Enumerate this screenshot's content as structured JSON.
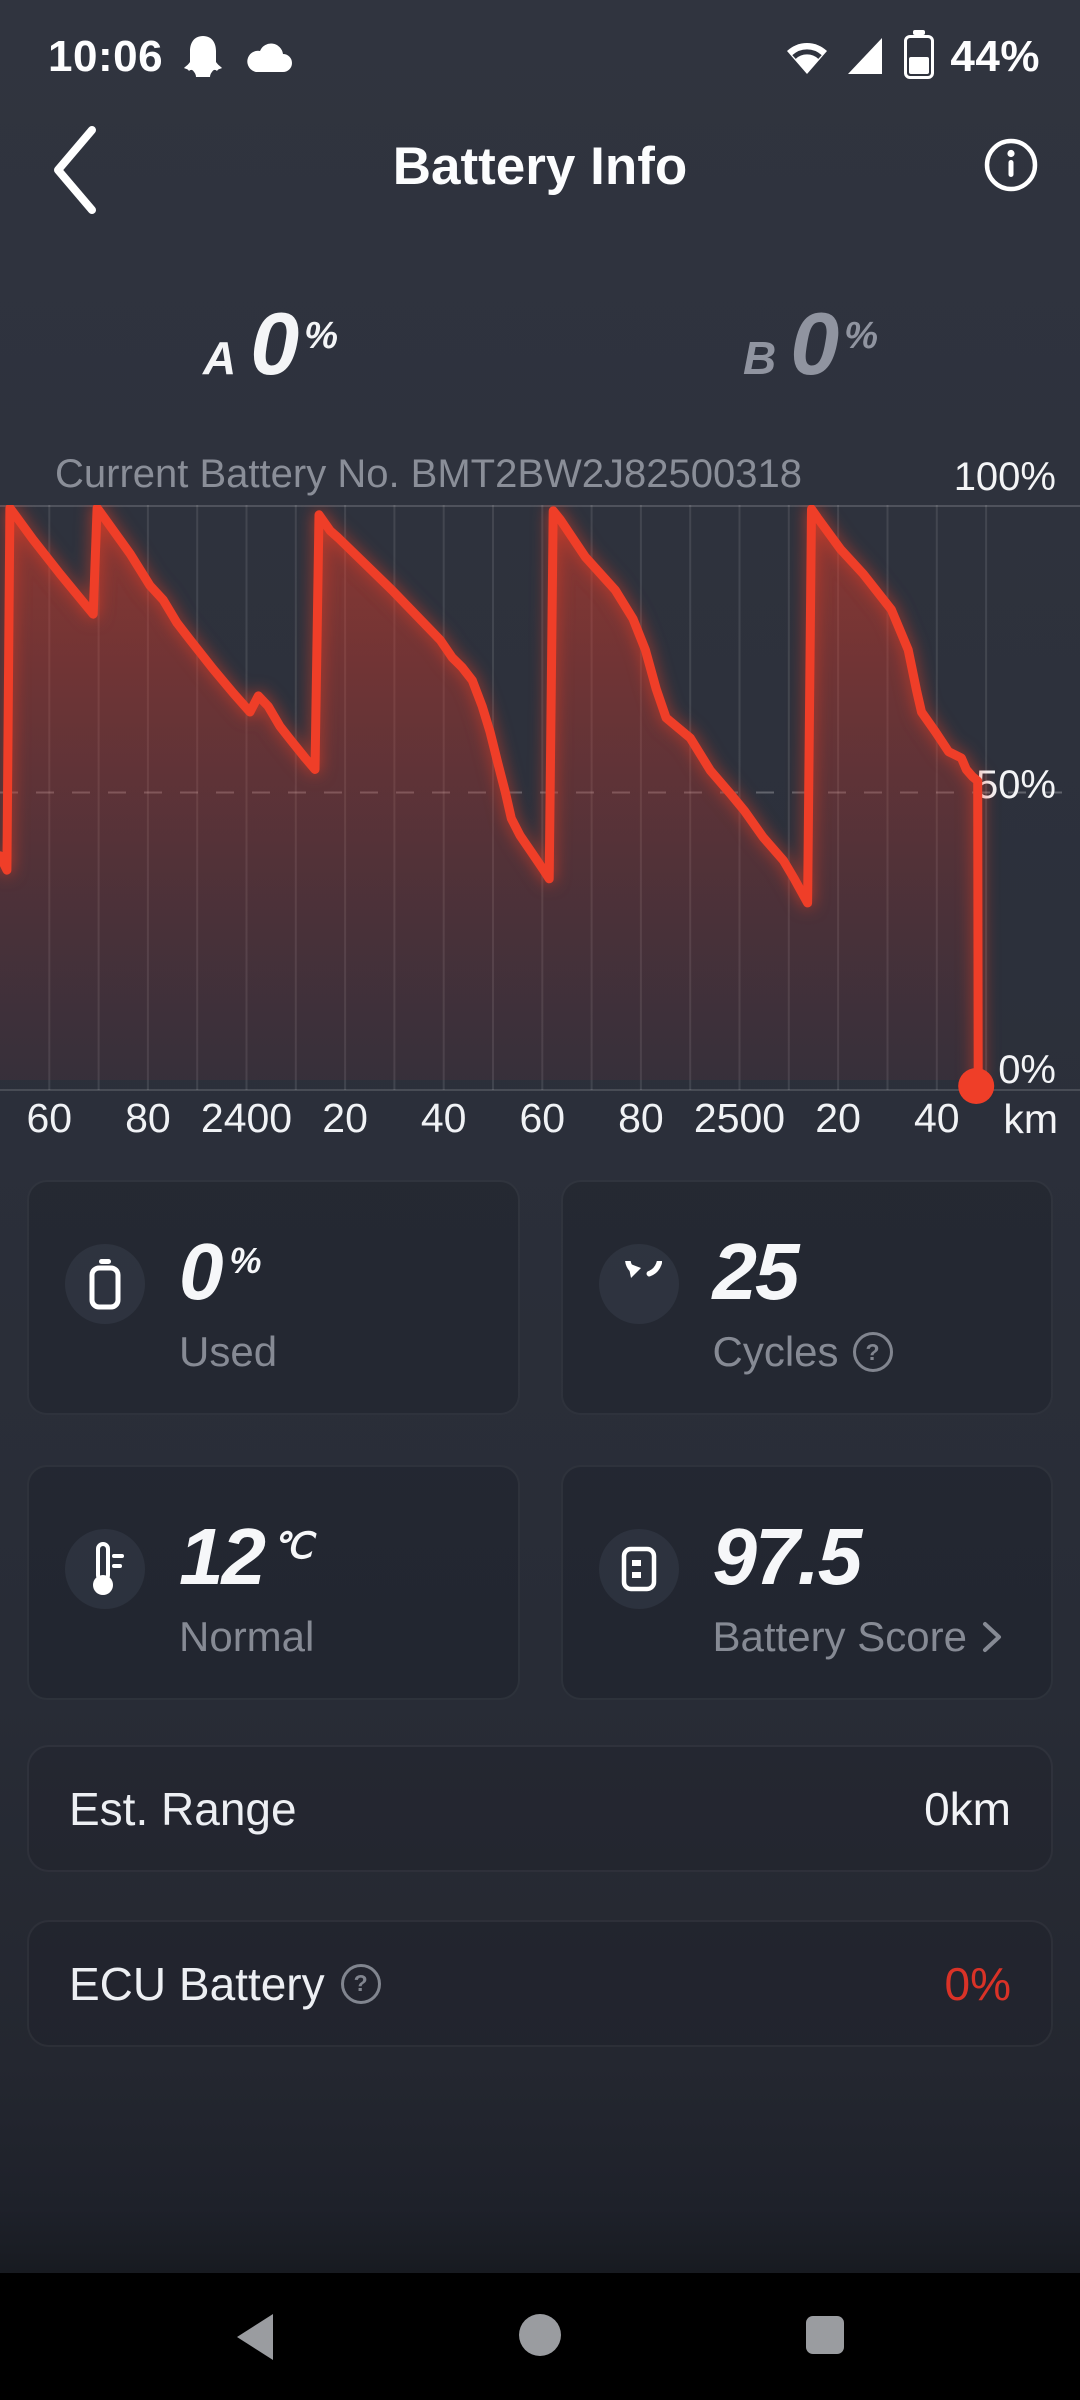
{
  "status_bar": {
    "time": "10:06",
    "battery": "44%"
  },
  "header": {
    "title": "Battery Info"
  },
  "pack_a": {
    "label": "A",
    "value": "0",
    "unit": "%"
  },
  "pack_b": {
    "label": "B",
    "value": "0",
    "unit": "%"
  },
  "chart": {
    "caption": "Current Battery No. BMT2BW2J82500318",
    "y_label_100": "100%",
    "y_label_50": "50%",
    "y_label_0": "0%",
    "x_unit": "km"
  },
  "chart_data": {
    "type": "area",
    "title": "Battery charge (%) vs odometer distance (km)",
    "xlabel": "km",
    "ylabel": "%",
    "x_range": [
      2350,
      2550.8
    ],
    "y_range": [
      0,
      100
    ],
    "grid_start_km": 2360,
    "grid_end_km": 2550,
    "grid_step_km": 10,
    "y_ticks": [
      {
        "pct": 100,
        "label": "100%"
      },
      {
        "pct": 50,
        "label": "50%"
      },
      {
        "pct": 0,
        "label": "0%"
      }
    ],
    "x_ticks": [
      {
        "km": 2360,
        "label": "60"
      },
      {
        "km": 2380,
        "label": "80"
      },
      {
        "km": 2400,
        "label": "2400"
      },
      {
        "km": 2420,
        "label": "20"
      },
      {
        "km": 2440,
        "label": "40"
      },
      {
        "km": 2460,
        "label": "60"
      },
      {
        "km": 2480,
        "label": "80"
      },
      {
        "km": 2500,
        "label": "2500"
      },
      {
        "km": 2520,
        "label": "20"
      },
      {
        "km": 2540,
        "label": "40"
      }
    ],
    "line_color": "#ef3e28",
    "points": [
      [
        2350,
        39
      ],
      [
        2351.4,
        36.5
      ],
      [
        2352,
        99.5
      ],
      [
        2356.7,
        94
      ],
      [
        2362.2,
        88
      ],
      [
        2368.9,
        81
      ],
      [
        2369.7,
        99.5
      ],
      [
        2376.4,
        91.5
      ],
      [
        2380.4,
        86
      ],
      [
        2383.1,
        83.5
      ],
      [
        2385.9,
        79.5
      ],
      [
        2388.6,
        76.5
      ],
      [
        2393.2,
        71.5
      ],
      [
        2397.3,
        67.3
      ],
      [
        2400.7,
        64
      ],
      [
        2402.4,
        66.8
      ],
      [
        2404.4,
        65
      ],
      [
        2406.8,
        61.5
      ],
      [
        2408.8,
        59.3
      ],
      [
        2411.9,
        56
      ],
      [
        2413.9,
        54
      ],
      [
        2414.7,
        98.3
      ],
      [
        2417,
        95.5
      ],
      [
        2418.6,
        94.3
      ],
      [
        2429.5,
        85.2
      ],
      [
        2439.3,
        76.5
      ],
      [
        2441.7,
        73.5
      ],
      [
        2443.7,
        71.8
      ],
      [
        2445.8,
        69.5
      ],
      [
        2447.8,
        65
      ],
      [
        2449.4,
        60.5
      ],
      [
        2451,
        55
      ],
      [
        2452.5,
        50
      ],
      [
        2453.7,
        45.5
      ],
      [
        2455.5,
        42.5
      ],
      [
        2457.9,
        39.5
      ],
      [
        2460.2,
        36.6
      ],
      [
        2461.4,
        35
      ],
      [
        2462.2,
        99
      ],
      [
        2463.6,
        97.5
      ],
      [
        2468.7,
        91
      ],
      [
        2474.8,
        85.2
      ],
      [
        2478.4,
        80.2
      ],
      [
        2480.9,
        74.8
      ],
      [
        2483.1,
        68
      ],
      [
        2485.1,
        63
      ],
      [
        2490,
        59.5
      ],
      [
        2494.1,
        53.8
      ],
      [
        2498.1,
        49.8
      ],
      [
        2501,
        46.8
      ],
      [
        2504.8,
        42.2
      ],
      [
        2508.9,
        38.2
      ],
      [
        2511.1,
        35
      ],
      [
        2513.8,
        30.8
      ],
      [
        2514.6,
        99.3
      ],
      [
        2515.8,
        97.8
      ],
      [
        2520.5,
        92.3
      ],
      [
        2525.1,
        88
      ],
      [
        2530.8,
        81.8
      ],
      [
        2534.2,
        74.8
      ],
      [
        2535.9,
        67.8
      ],
      [
        2536.9,
        64
      ],
      [
        2539.7,
        60.6
      ],
      [
        2542.4,
        57.1
      ],
      [
        2545,
        56
      ],
      [
        2546,
        54
      ],
      [
        2547.2,
        52.8
      ],
      [
        2548.3,
        52
      ],
      [
        2548.4,
        0
      ]
    ]
  },
  "cards": {
    "used": {
      "value": "0",
      "unit": "%",
      "label": "Used"
    },
    "cycles": {
      "value": "25",
      "label": "Cycles"
    },
    "temp": {
      "value": "12",
      "unit": "℃",
      "label": "Normal"
    },
    "score": {
      "value": "97.5",
      "label": "Battery Score"
    }
  },
  "rows": {
    "est_range": {
      "label": "Est. Range",
      "value": "0km"
    },
    "ecu": {
      "label": "ECU Battery",
      "value": "0%"
    }
  },
  "glyphs": {
    "question_mark": "?"
  },
  "colors": {
    "accent_red": "#ef3e28",
    "ecu_value_red": "#d93227",
    "page_bg": "#2c303b"
  }
}
